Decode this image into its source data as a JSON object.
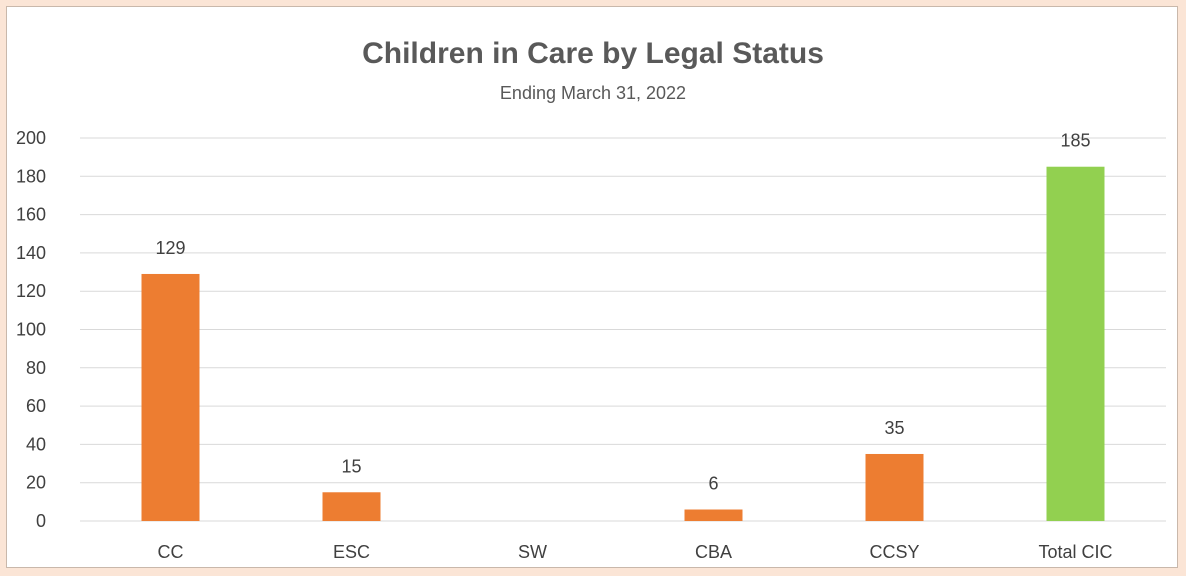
{
  "chart_data": {
    "type": "bar",
    "title": "Children in Care by Legal Status",
    "subtitle": "Ending March 31, 2022",
    "categories": [
      "CC",
      "ESC",
      "SW",
      "CBA",
      "CCSY",
      "Total CIC"
    ],
    "values": [
      129,
      15,
      0,
      6,
      35,
      185
    ],
    "data_labels": [
      "129",
      "15",
      "",
      "6",
      "35",
      "185"
    ],
    "bar_colors": [
      "#ed7d31",
      "#ed7d31",
      "#ed7d31",
      "#ed7d31",
      "#ed7d31",
      "#92d050"
    ],
    "ylim": [
      0,
      200
    ],
    "yticks": [
      0,
      20,
      40,
      60,
      80,
      100,
      120,
      140,
      160,
      180,
      200
    ],
    "ytick_labels": [
      "0",
      "20",
      "40",
      "60",
      "80",
      "100",
      "120",
      "140",
      "160",
      "180",
      "200"
    ],
    "grid": true,
    "legend": "none"
  },
  "colors": {
    "page_background": "#fbe5d6",
    "chart_background": "#ffffff",
    "gridline": "#d9d9d9",
    "text": "#595959"
  }
}
